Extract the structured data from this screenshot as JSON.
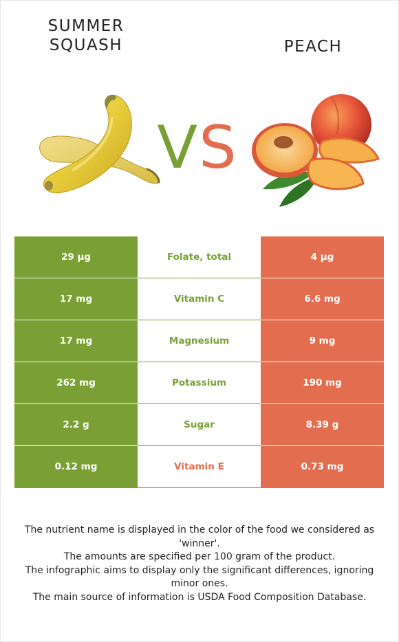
{
  "left_food": {
    "name_line1": "SUMMER",
    "name_line2": "SQUASH",
    "image": "summer-squash"
  },
  "right_food": {
    "name": "PEACH",
    "image": "peach"
  },
  "vs": {
    "v": "V",
    "s": "S"
  },
  "colors": {
    "left": "#7a9f35",
    "right": "#e36d4f"
  },
  "rows": [
    {
      "left": "29 µg",
      "nutrient": "Folate, total",
      "right": "4 µg",
      "winner": "left"
    },
    {
      "left": "17 mg",
      "nutrient": "Vitamin C",
      "right": "6.6 mg",
      "winner": "left"
    },
    {
      "left": "17 mg",
      "nutrient": "Magnesium",
      "right": "9 mg",
      "winner": "left"
    },
    {
      "left": "262 mg",
      "nutrient": "Potassium",
      "right": "190 mg",
      "winner": "left"
    },
    {
      "left": "2.2 g",
      "nutrient": "Sugar",
      "right": "8.39 g",
      "winner": "left"
    },
    {
      "left": "0.12 mg",
      "nutrient": "Vitamin E",
      "right": "0.73 mg",
      "winner": "right"
    }
  ],
  "notes": [
    "The nutrient name is displayed in the color of the food we considered as 'winner'.",
    "The amounts are specified per 100 gram of the product.",
    "The infographic aims to display only the significant differences, ignoring minor ones.",
    "The main source of information is USDA Food Composition Database."
  ]
}
